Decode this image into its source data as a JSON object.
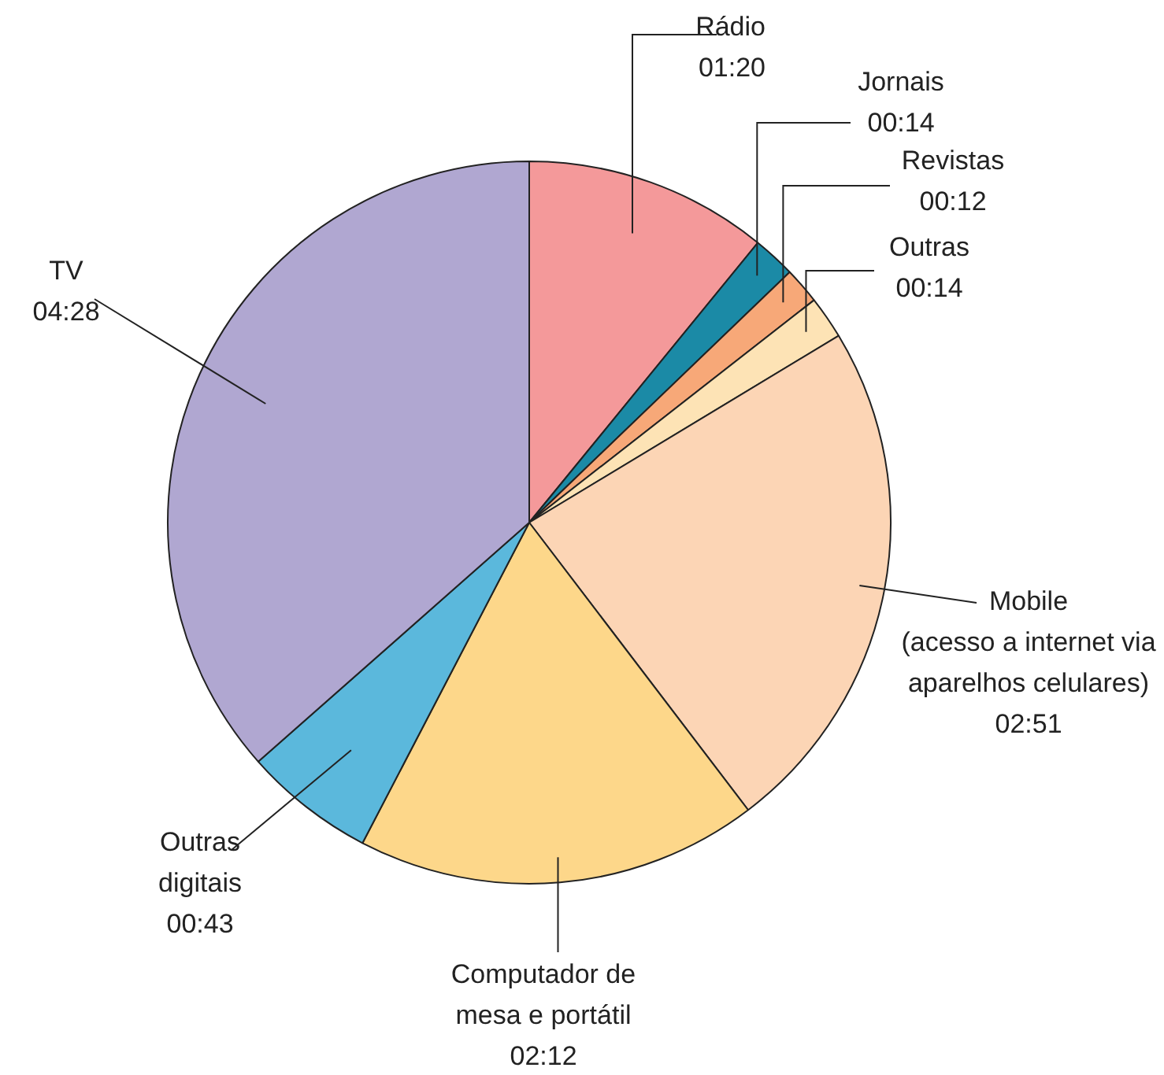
{
  "chart_data": {
    "type": "pie",
    "categories": [
      "Rádio",
      "Jornais",
      "Revistas",
      "Outras",
      "Mobile (acesso a internet via aparelhos celulares)",
      "Computador de mesa e portátil",
      "Outras digitais",
      "TV"
    ],
    "values": [
      80,
      14,
      12,
      14,
      171,
      132,
      43,
      268
    ],
    "value_labels": [
      "01:20",
      "00:14",
      "00:12",
      "00:14",
      "02:51",
      "02:12",
      "00:43",
      "04:28"
    ],
    "colors": [
      "#f4999a",
      "#1b8aa6",
      "#f7a878",
      "#fde3b5",
      "#fcd5b5",
      "#fdd78a",
      "#5bb8dc",
      "#b0a7d1"
    ]
  }
}
